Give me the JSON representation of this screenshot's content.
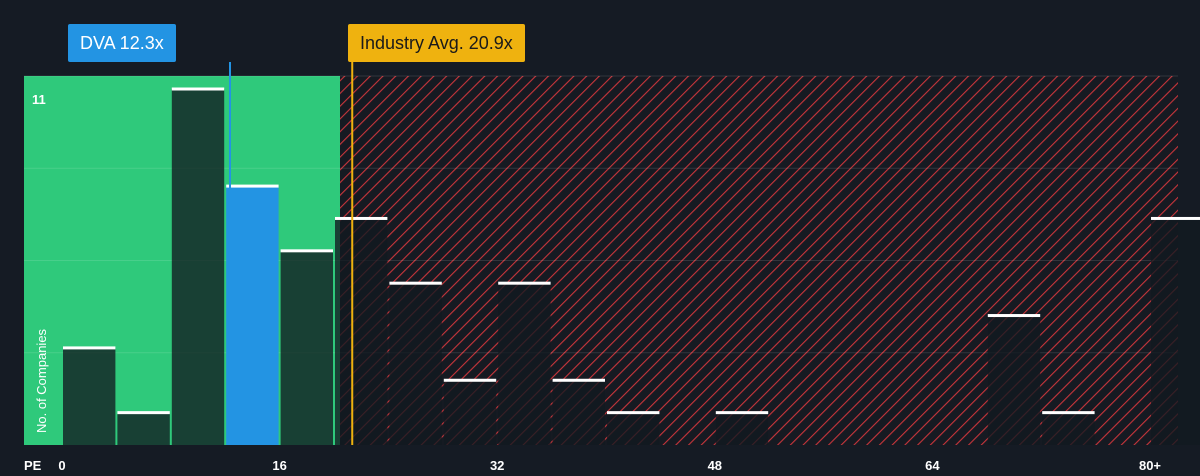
{
  "callouts": {
    "company": "DVA 12.3x",
    "industry": "Industry Avg. 20.9x"
  },
  "colors": {
    "background": "#151b24",
    "undervalued_zone": "#2fc97b",
    "company_bar": "#2394e3",
    "industry_marker": "#efb20f",
    "overvalued_hatch": "#c8353b",
    "bar_cap": "#ffffff"
  },
  "chart_data": {
    "type": "bar",
    "title": "",
    "xlabel": "PE",
    "ylabel": "No. of Companies",
    "xlim": [
      0,
      80
    ],
    "ylim": [
      0,
      11
    ],
    "x_ticks": [
      "0",
      "16",
      "32",
      "48",
      "64",
      "80+"
    ],
    "x_tick_values": [
      0,
      16,
      32,
      48,
      64,
      80
    ],
    "y_tick_labels": [
      "11"
    ],
    "company": {
      "name": "DVA",
      "pe": 12.3,
      "label": "DVA 12.3x"
    },
    "industry_average": {
      "pe": 20.9,
      "label": "Industry Avg. 20.9x"
    },
    "undervalued_zone_max_pe": 20,
    "bin_width": 4,
    "bins": [
      {
        "start": 0,
        "count": 3,
        "highlight": false
      },
      {
        "start": 4,
        "count": 1,
        "highlight": false
      },
      {
        "start": 8,
        "count": 11,
        "highlight": false
      },
      {
        "start": 12,
        "count": 8,
        "highlight": true
      },
      {
        "start": 16,
        "count": 6,
        "highlight": false
      },
      {
        "start": 20,
        "count": 7,
        "highlight": false
      },
      {
        "start": 24,
        "count": 5,
        "highlight": false
      },
      {
        "start": 28,
        "count": 2,
        "highlight": false
      },
      {
        "start": 32,
        "count": 5,
        "highlight": false
      },
      {
        "start": 36,
        "count": 2,
        "highlight": false
      },
      {
        "start": 40,
        "count": 1,
        "highlight": false
      },
      {
        "start": 44,
        "count": 0,
        "highlight": false
      },
      {
        "start": 48,
        "count": 1,
        "highlight": false
      },
      {
        "start": 52,
        "count": 0,
        "highlight": false
      },
      {
        "start": 56,
        "count": 0,
        "highlight": false
      },
      {
        "start": 60,
        "count": 0,
        "highlight": false
      },
      {
        "start": 64,
        "count": 0,
        "highlight": false
      },
      {
        "start": 68,
        "count": 4,
        "highlight": false
      },
      {
        "start": 72,
        "count": 1,
        "highlight": false
      },
      {
        "start": 76,
        "count": 0,
        "highlight": false
      },
      {
        "start": 80,
        "count": 7,
        "highlight": false
      }
    ]
  }
}
